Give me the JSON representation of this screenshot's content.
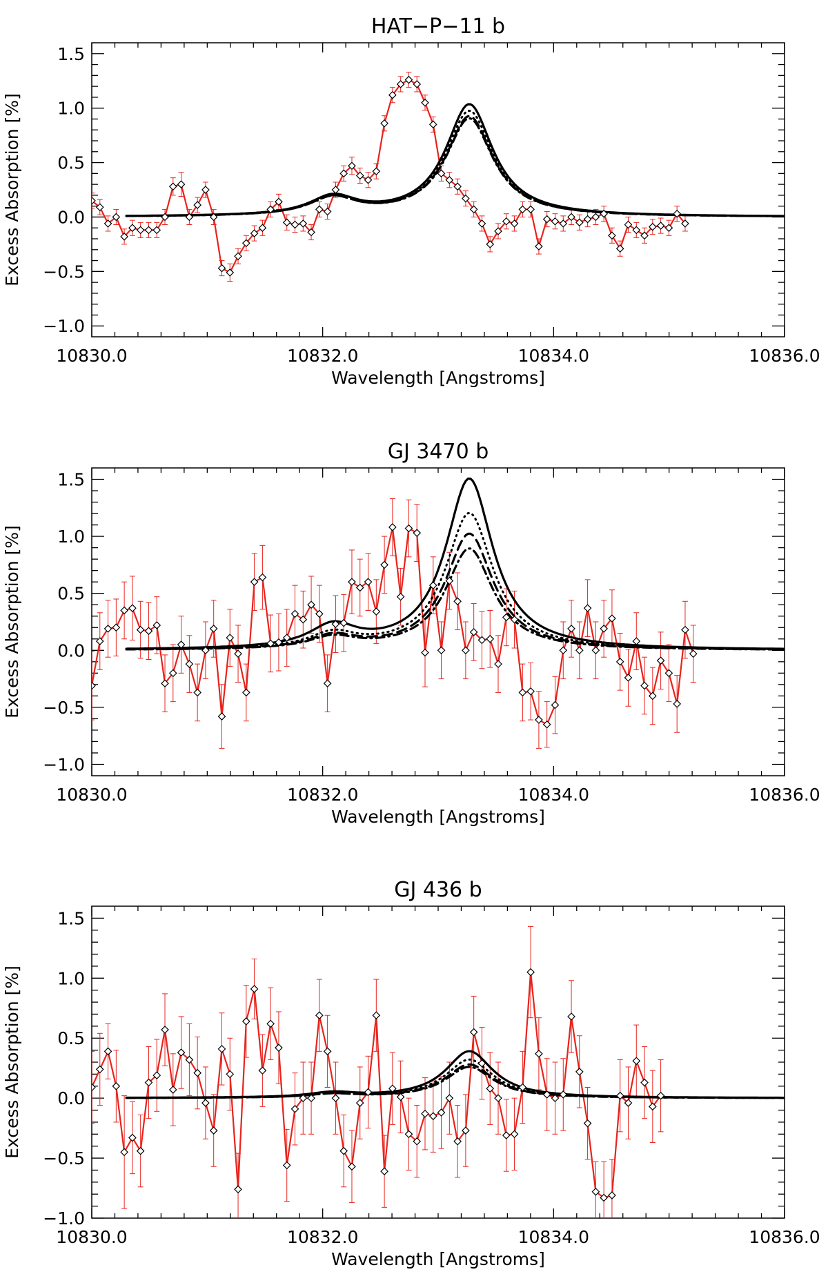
{
  "chart_data": [
    {
      "type": "line",
      "title": "HAT−P−11 b",
      "xlabel": "Wavelength [Angstroms]",
      "ylabel": "Excess Absorption [%]",
      "xlim": [
        10830.0,
        10836.0
      ],
      "ylim": [
        -1.1,
        1.6
      ],
      "xticks": [
        10830.0,
        10832.0,
        10834.0,
        10836.0
      ],
      "xtick_labels": [
        "10830.0",
        "10832.0",
        "10834.0",
        "10836.0"
      ],
      "yticks": [
        -1.0,
        -0.5,
        0.0,
        0.5,
        1.0,
        1.5
      ],
      "ytick_labels": [
        "−1.0",
        "−0.5",
        "0.0",
        "0.5",
        "1.0",
        "1.5"
      ],
      "observed": {
        "name": "observed",
        "color": "#e8231c",
        "x_start": 10830.0,
        "x_step": 0.0704,
        "values": [
          0.15,
          0.09,
          -0.06,
          0.0,
          -0.18,
          -0.1,
          -0.12,
          -0.12,
          -0.12,
          0.0,
          0.28,
          0.3,
          0.0,
          0.11,
          0.25,
          0.0,
          -0.47,
          -0.51,
          -0.36,
          -0.24,
          -0.15,
          -0.1,
          0.07,
          0.14,
          -0.05,
          -0.07,
          -0.06,
          -0.14,
          0.07,
          0.05,
          0.25,
          0.4,
          0.47,
          0.38,
          0.34,
          0.42,
          0.86,
          1.12,
          1.22,
          1.26,
          1.22,
          1.05,
          0.85,
          0.4,
          0.34,
          0.28,
          0.17,
          0.07,
          -0.06,
          -0.25,
          -0.13,
          -0.04,
          -0.06,
          0.07,
          0.07,
          -0.27,
          -0.02,
          -0.04,
          -0.06,
          0.0,
          -0.05,
          -0.02,
          0.0,
          0.03,
          -0.17,
          -0.29,
          -0.07,
          -0.12,
          -0.17,
          -0.09,
          -0.08,
          -0.1,
          0.03,
          -0.06
        ],
        "errors": [
          0.07,
          0.07,
          0.07,
          0.07,
          0.07,
          0.07,
          0.07,
          0.07,
          0.07,
          0.07,
          0.08,
          0.11,
          0.07,
          0.07,
          0.07,
          0.07,
          0.07,
          0.08,
          0.07,
          0.07,
          0.07,
          0.07,
          0.07,
          0.07,
          0.07,
          0.07,
          0.07,
          0.07,
          0.07,
          0.07,
          0.07,
          0.07,
          0.08,
          0.07,
          0.07,
          0.07,
          0.07,
          0.07,
          0.07,
          0.07,
          0.07,
          0.07,
          0.07,
          0.07,
          0.07,
          0.07,
          0.07,
          0.07,
          0.07,
          0.07,
          0.07,
          0.07,
          0.07,
          0.07,
          0.07,
          0.07,
          0.07,
          0.07,
          0.07,
          0.07,
          0.07,
          0.07,
          0.07,
          0.07,
          0.07,
          0.07,
          0.07,
          0.07,
          0.07,
          0.07,
          0.07,
          0.07,
          0.07,
          0.07
        ]
      },
      "models": [
        {
          "name": "model-solid",
          "dash": "solid",
          "amp1": 1.03,
          "amp2": 0.17
        },
        {
          "name": "model-dotted",
          "dash": "dotted",
          "amp1": 0.97,
          "amp2": 0.16
        },
        {
          "name": "model-dashed",
          "dash": "dashed",
          "amp1": 0.92,
          "amp2": 0.16
        },
        {
          "name": "model-dashdot",
          "dash": "dashdot",
          "amp1": 0.9,
          "amp2": 0.16
        }
      ],
      "model_profile": {
        "center1": 10833.27,
        "width1": 0.25,
        "center2": 10832.09,
        "width2": 0.25,
        "x_start": 10830.3,
        "x_end": 10836.0
      }
    },
    {
      "type": "line",
      "title": "GJ 3470 b",
      "xlabel": "Wavelength [Angstroms]",
      "ylabel": "Excess Absorption [%]",
      "xlim": [
        10830.0,
        10836.0
      ],
      "ylim": [
        -1.1,
        1.6
      ],
      "xticks": [
        10830.0,
        10832.0,
        10834.0,
        10836.0
      ],
      "xtick_labels": [
        "10830.0",
        "10832.0",
        "10834.0",
        "10836.0"
      ],
      "yticks": [
        -1.0,
        -0.5,
        0.0,
        0.5,
        1.0,
        1.5
      ],
      "ytick_labels": [
        "−1.0",
        "−0.5",
        "0.0",
        "0.5",
        "1.0",
        "1.5"
      ],
      "observed": {
        "name": "observed",
        "color": "#e8231c",
        "x_start": 10830.0,
        "x_step": 0.0704,
        "values": [
          -0.31,
          0.08,
          0.19,
          0.2,
          0.35,
          0.37,
          0.18,
          0.17,
          0.22,
          -0.29,
          -0.2,
          0.05,
          -0.12,
          -0.37,
          0.0,
          0.19,
          -0.58,
          0.11,
          -0.03,
          -0.37,
          0.6,
          0.64,
          0.06,
          0.07,
          0.11,
          0.32,
          0.27,
          0.4,
          0.32,
          -0.29,
          0.23,
          0.24,
          0.6,
          0.55,
          0.6,
          0.34,
          0.75,
          1.08,
          0.47,
          1.07,
          1.03,
          -0.02,
          0.57,
          0.0,
          0.61,
          0.43,
          0.0,
          0.16,
          0.09,
          0.1,
          -0.12,
          0.29,
          0.27,
          -0.37,
          -0.36,
          -0.61,
          -0.65,
          -0.48,
          0.0,
          0.19,
          0.0,
          0.37,
          0.0,
          0.19,
          0.28,
          -0.1,
          -0.24,
          0.08,
          -0.31,
          -0.4,
          -0.09,
          -0.2,
          -0.47,
          0.18,
          -0.03
        ],
        "errors": [
          0.3,
          0.25,
          0.25,
          0.25,
          0.25,
          0.28,
          0.25,
          0.25,
          0.25,
          0.25,
          0.25,
          0.25,
          0.25,
          0.25,
          0.25,
          0.25,
          0.28,
          0.25,
          0.25,
          0.25,
          0.25,
          0.28,
          0.25,
          0.25,
          0.25,
          0.25,
          0.25,
          0.25,
          0.25,
          0.25,
          0.25,
          0.25,
          0.28,
          0.25,
          0.25,
          0.28,
          0.25,
          0.25,
          0.25,
          0.25,
          0.25,
          0.3,
          0.25,
          0.25,
          0.25,
          0.25,
          0.25,
          0.25,
          0.25,
          0.25,
          0.25,
          0.25,
          0.25,
          0.25,
          0.25,
          0.25,
          0.2,
          0.25,
          0.25,
          0.25,
          0.25,
          0.25,
          0.25,
          0.25,
          0.25,
          0.25,
          0.25,
          0.25,
          0.25,
          0.25,
          0.25,
          0.25,
          0.25,
          0.25,
          0.25
        ]
      },
      "models": [
        {
          "name": "model-solid",
          "dash": "solid",
          "amp1": 1.5,
          "amp2": 0.19
        },
        {
          "name": "model-dotted",
          "dash": "dotted",
          "amp1": 1.2,
          "amp2": 0.13
        },
        {
          "name": "model-dashed",
          "dash": "dashed",
          "amp1": 1.02,
          "amp2": 0.11
        },
        {
          "name": "model-dashdot",
          "dash": "dashdot",
          "amp1": 0.89,
          "amp2": 0.1
        }
      ],
      "model_profile": {
        "center1": 10833.27,
        "width1": 0.25,
        "center2": 10832.09,
        "width2": 0.25,
        "x_start": 10830.3,
        "x_end": 10836.0
      }
    },
    {
      "type": "line",
      "title": "GJ 436 b",
      "xlabel": "Wavelength [Angstroms]",
      "ylabel": "Excess Absorption [%]",
      "xlim": [
        10830.0,
        10836.0
      ],
      "ylim": [
        -1.0,
        1.6
      ],
      "xticks": [
        10830.0,
        10832.0,
        10834.0,
        10836.0
      ],
      "xtick_labels": [
        "10830.0",
        "10832.0",
        "10834.0",
        "10836.0"
      ],
      "yticks": [
        -1.0,
        -0.5,
        0.0,
        0.5,
        1.0,
        1.5
      ],
      "ytick_labels": [
        "−1.0",
        "−0.5",
        "0.0",
        "0.5",
        "1.0",
        "1.5"
      ],
      "observed": {
        "name": "observed",
        "color": "#e8231c",
        "x_start": 10830.0,
        "x_step": 0.0704,
        "values": [
          0.09,
          0.24,
          0.39,
          0.1,
          -0.45,
          -0.33,
          -0.44,
          0.13,
          0.19,
          0.57,
          0.07,
          0.38,
          0.32,
          0.21,
          -0.04,
          -0.27,
          0.41,
          0.2,
          -0.76,
          0.64,
          0.91,
          0.23,
          0.62,
          0.42,
          -0.56,
          -0.09,
          0.0,
          0.0,
          0.69,
          0.39,
          0.0,
          -0.44,
          -0.57,
          -0.04,
          0.05,
          0.69,
          -0.61,
          0.08,
          0.01,
          -0.3,
          -0.36,
          -0.13,
          -0.15,
          -0.12,
          0.0,
          -0.36,
          -0.27,
          0.55,
          0.29,
          0.08,
          0.0,
          -0.31,
          -0.3,
          0.09,
          1.05,
          0.37,
          0.03,
          0.0,
          0.03,
          0.68,
          0.22,
          -0.21,
          -0.78,
          -0.83,
          -0.81,
          0.02,
          -0.04,
          0.31,
          0.13,
          -0.07,
          0.02
        ],
        "errors": [
          0.3,
          0.3,
          0.23,
          0.3,
          0.47,
          0.3,
          0.3,
          0.3,
          0.3,
          0.3,
          0.3,
          0.3,
          0.3,
          0.3,
          0.3,
          0.3,
          0.3,
          0.3,
          0.3,
          0.3,
          0.25,
          0.3,
          0.3,
          0.3,
          0.3,
          0.3,
          0.3,
          0.3,
          0.3,
          0.3,
          0.3,
          0.3,
          0.3,
          0.3,
          0.3,
          0.3,
          0.3,
          0.3,
          0.3,
          0.3,
          0.3,
          0.3,
          0.3,
          0.3,
          0.3,
          0.3,
          0.3,
          0.3,
          0.3,
          0.3,
          0.3,
          0.3,
          0.3,
          0.3,
          0.38,
          0.3,
          0.3,
          0.3,
          0.3,
          0.3,
          0.3,
          0.3,
          0.25,
          0.3,
          0.3,
          0.3,
          0.3,
          0.3,
          0.3,
          0.3,
          0.3
        ]
      },
      "models": [
        {
          "name": "model-solid",
          "dash": "solid",
          "amp1": 0.39,
          "amp2": 0.04
        },
        {
          "name": "model-dotted",
          "dash": "dotted",
          "amp1": 0.32,
          "amp2": 0.04
        },
        {
          "name": "model-dashed",
          "dash": "dashed",
          "amp1": 0.28,
          "amp2": 0.03
        },
        {
          "name": "model-dashdot",
          "dash": "dashdot",
          "amp1": 0.26,
          "amp2": 0.03
        }
      ],
      "model_profile": {
        "center1": 10833.27,
        "width1": 0.25,
        "center2": 10832.09,
        "width2": 0.25,
        "x_start": 10830.3,
        "x_end": 10836.0
      }
    }
  ]
}
